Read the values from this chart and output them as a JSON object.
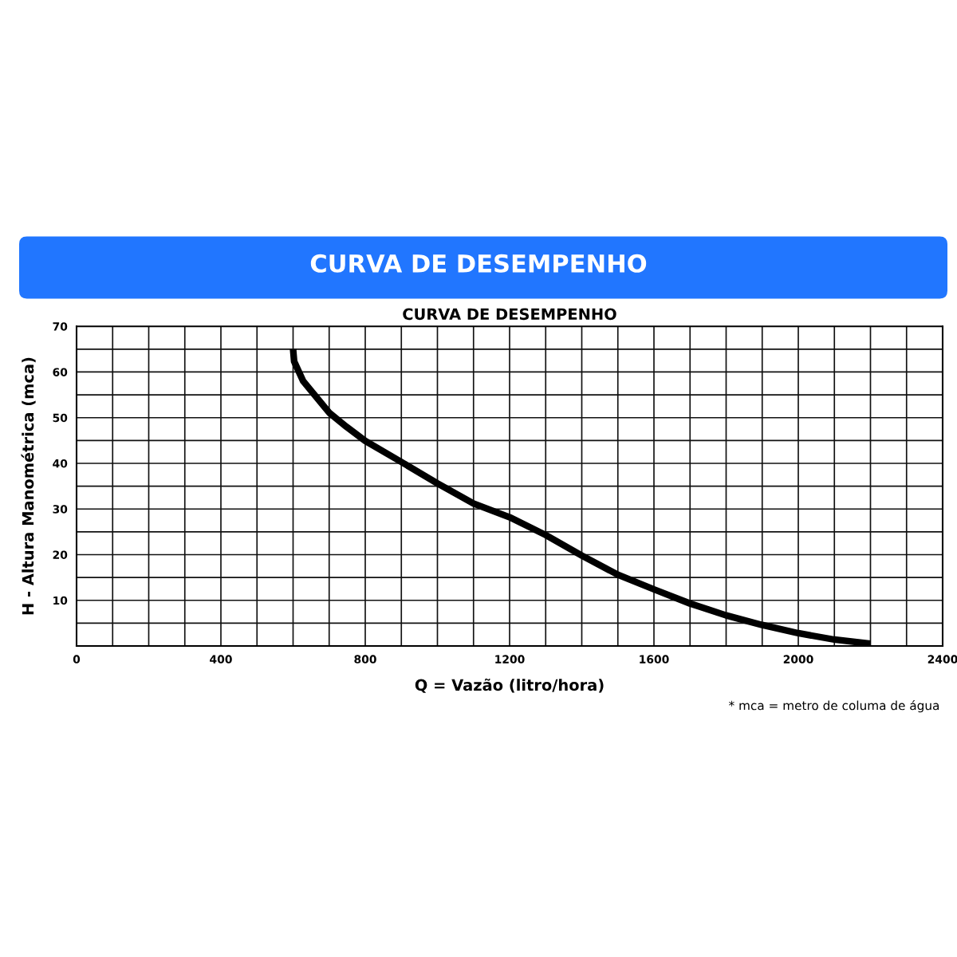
{
  "chart_data": {
    "type": "line",
    "title": "CURVA DE DESEMPENHO",
    "subtitle": "CURVA DE DESEMPENHO",
    "xlabel": "Q = Vazão (litro/hora)",
    "ylabel": "H - Altura Manométrica (mca)",
    "annotations": [
      "* mca = metro de columa de água"
    ],
    "series": [
      {
        "color": "#000000",
        "x": [
          600,
          603,
          628,
          700,
          748,
          800,
          900,
          1000,
          1100,
          1200,
          1300,
          1400,
          1500,
          1600,
          1700,
          1800,
          1900,
          2000,
          2100,
          2200
        ],
        "values": [
          65,
          62.3,
          58,
          51.1,
          48,
          44.9,
          40.3,
          35.6,
          31.2,
          28.2,
          24.3,
          19.8,
          15.6,
          12.4,
          9.3,
          6.7,
          4.6,
          2.8,
          1.4,
          0.5
        ]
      }
    ],
    "xlim": [
      0,
      2400
    ],
    "xticks": [
      0,
      {
        "value": 100,
        "label": null
      },
      {
        "value": 200,
        "label": null
      },
      {
        "value": 300,
        "label": null
      },
      400,
      {
        "value": 500,
        "label": null
      },
      {
        "value": 600,
        "label": null
      },
      {
        "value": 700,
        "label": null
      },
      800,
      {
        "value": 900,
        "label": null
      },
      {
        "value": 1000,
        "label": null
      },
      {
        "value": 1100,
        "label": null
      },
      1200,
      {
        "value": 1300,
        "label": null
      },
      {
        "value": 1400,
        "label": null
      },
      {
        "value": 1500,
        "label": null
      },
      1600,
      {
        "value": 1700,
        "label": null
      },
      {
        "value": 1800,
        "label": null
      },
      {
        "value": 1900,
        "label": null
      },
      2000,
      {
        "value": 2100,
        "label": null
      },
      {
        "value": 2200,
        "label": null
      },
      {
        "value": 2300,
        "label": null
      },
      2400
    ],
    "ylim": [
      0,
      70
    ],
    "yticks": [
      {
        "value": 0,
        "label": null
      },
      {
        "value": 5,
        "label": null
      },
      10,
      {
        "value": 15,
        "label": null
      },
      20,
      {
        "value": 25,
        "label": null
      },
      30,
      {
        "value": 35,
        "label": null
      },
      40,
      {
        "value": 45,
        "label": null
      },
      50,
      {
        "value": 55,
        "label": null
      },
      60,
      {
        "value": 65,
        "label": null
      },
      70
    ],
    "grid": true,
    "marker": "none",
    "line_style": "solid",
    "legend": false
  }
}
